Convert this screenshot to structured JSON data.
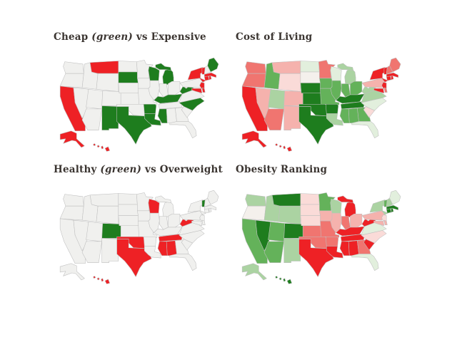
{
  "page": {
    "background": "#ffffff"
  },
  "palette": {
    "neutral": "#f0f0ee",
    "border": "#bfbfbf",
    "r4": "#ee2125",
    "r3": "#f07570",
    "r2": "#f5b2ad",
    "r1": "#fadbd8",
    "n": "#f4f0ec",
    "g1": "#e2efdd",
    "g2": "#abd3a2",
    "g3": "#64b25a",
    "g4": "#1e7d1e"
  },
  "chart_data": [
    {
      "type": "choropleth-map",
      "title": "Cheap (green) vs Expensive",
      "title_runs": [
        {
          "text": "Cheap "
        },
        {
          "text": "(green)",
          "italic": true
        },
        {
          "text": " vs Expensive"
        }
      ],
      "green_states": [
        "ME",
        "MI",
        "WI",
        "SD",
        "NM",
        "TX",
        "AR",
        "LA",
        "MS",
        "KY",
        "WV",
        "NC"
      ],
      "red_states": [
        "CA",
        "MT",
        "AK",
        "HI",
        "NY",
        "VT",
        "MA",
        "RI",
        "CT",
        "NJ",
        "DE",
        "MD"
      ]
    },
    {
      "type": "choropleth-map",
      "title": "Cost of Living",
      "title_runs": [
        {
          "text": "Cost of Living"
        }
      ],
      "state_shades": {
        "WA": "r3",
        "OR": "r3",
        "CA": "r4",
        "AK": "r4",
        "HI": "r4",
        "ID": "g3",
        "NV": "r2",
        "UT": "g2",
        "AZ": "r3",
        "MT": "r2",
        "WY": "r1",
        "CO": "r2",
        "NM": "r2",
        "ND": "g1",
        "SD": "n",
        "NE": "g4",
        "KS": "g4",
        "OK": "g4",
        "TX": "g4",
        "MN": "r3",
        "IA": "g3",
        "MO": "g3",
        "AR": "g4",
        "LA": "g2",
        "WI": "g1",
        "IL": "g3",
        "MI": "g2",
        "IN": "g3",
        "OH": "g3",
        "KY": "g4",
        "TN": "g4",
        "MS": "g3",
        "AL": "g3",
        "GA": "g3",
        "FL": "g1",
        "SC": "r1",
        "NC": "g1",
        "VA": "g2",
        "WV": "g2",
        "PA": "r2",
        "NY": "r4",
        "NJ": "r4",
        "DE": "r3",
        "MD": "r4",
        "CT": "r4",
        "RI": "r4",
        "MA": "r4",
        "VT": "r4",
        "NH": "r3",
        "ME": "r3"
      }
    },
    {
      "type": "choropleth-map",
      "title": "Healthy (green) vs Overweight",
      "title_runs": [
        {
          "text": "Healthy "
        },
        {
          "text": "(green)",
          "italic": true
        },
        {
          "text": " vs Overweight"
        }
      ],
      "green_states": [
        "CO",
        "VT"
      ],
      "red_states": [
        "WI",
        "WV",
        "TN",
        "MS",
        "AL",
        "OK",
        "TX",
        "HI"
      ]
    },
    {
      "type": "choropleth-map",
      "title": "Obesity Ranking",
      "title_runs": [
        {
          "text": "Obesity Ranking"
        }
      ],
      "state_shades": {
        "WA": "g2",
        "OR": "n",
        "CA": "g3",
        "AK": "g2",
        "HI": "g4",
        "ID": "g2",
        "NV": "g4",
        "UT": "g3",
        "AZ": "g3",
        "MT": "g4",
        "WY": "g2",
        "CO": "g4",
        "NM": "g2",
        "ND": "r1",
        "SD": "r1",
        "NE": "r1",
        "KS": "r3",
        "OK": "r3",
        "TX": "r4",
        "MN": "g3",
        "IA": "r2",
        "MO": "r3",
        "AR": "r3",
        "LA": "r4",
        "WI": "g2",
        "IL": "r2",
        "MI": "r4",
        "IN": "r3",
        "OH": "r2",
        "KY": "r4",
        "TN": "r4",
        "MS": "r4",
        "AL": "r4",
        "GA": "r3",
        "FL": "g1",
        "SC": "r4",
        "NC": "r1",
        "VA": "g1",
        "WV": "r4",
        "PA": "r2",
        "NY": "g2",
        "NJ": "r1",
        "DE": "r2",
        "MD": "r2",
        "CT": "g4",
        "RI": "g4",
        "MA": "g4",
        "VT": "g3",
        "NH": "g2",
        "ME": "g1"
      }
    }
  ]
}
